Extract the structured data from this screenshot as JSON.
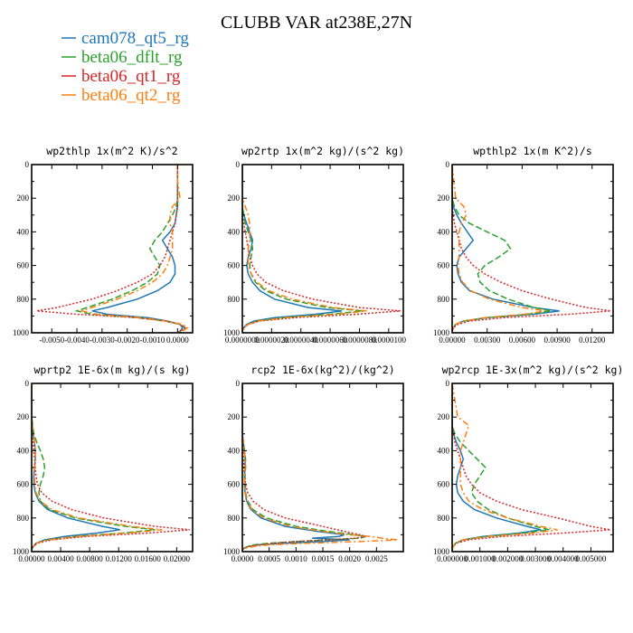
{
  "figure": {
    "title": "CLUBB VAR at238E,27N"
  },
  "legend": [
    {
      "label": "cam078_qt5_rg",
      "color": "#1f77b4",
      "dash": "solid"
    },
    {
      "label": "beta06_dflt_rg",
      "color": "#2ca02c",
      "dash": "dash"
    },
    {
      "label": "beta06_qt1_rg",
      "color": "#d62728",
      "dash": "dot"
    },
    {
      "label": "beta06_qt2_rg",
      "color": "#ff7f0e",
      "dash": "dashdot"
    }
  ],
  "chart_data": [
    {
      "type": "line",
      "title": "wp2thlp  1x(m^2 K)/s^2",
      "xlim": [
        -0.0058,
        0.0006
      ],
      "xticks": [
        -0.005,
        -0.004,
        -0.003,
        -0.002,
        -0.001,
        0.0
      ],
      "xtick_labels": [
        "-0.0050",
        "-0.0040",
        "-0.0030",
        "-0.0020",
        "-0.0010",
        "0.0000"
      ],
      "ylim": [
        1000,
        0
      ],
      "yticks": [
        0,
        200,
        400,
        600,
        800,
        1000
      ],
      "ytick_labels": [
        "0",
        "200",
        "400",
        "600",
        "800",
        "1000"
      ],
      "y": [
        0,
        100,
        200,
        250,
        300,
        350,
        400,
        450,
        500,
        550,
        600,
        650,
        700,
        750,
        800,
        850,
        870,
        890,
        910,
        930,
        950,
        970,
        990,
        1000
      ],
      "series": [
        {
          "x": [
            0,
            0,
            0,
            0,
            -5e-05,
            -0.0001,
            -0.0003,
            -0.0006,
            -0.0004,
            -0.0002,
            -0.0001,
            -0.0001,
            -0.0003,
            -0.0008,
            -0.0016,
            -0.0028,
            -0.0034,
            -0.0028,
            -0.0012,
            -0.0004,
            0.0001,
            0.0002,
            0.0001,
            0
          ]
        },
        {
          "x": [
            0,
            0,
            0,
            -5e-05,
            -0.0002,
            -0.0004,
            -0.0006,
            -0.0009,
            -0.0011,
            -0.0009,
            -0.0007,
            -0.0008,
            -0.0012,
            -0.0018,
            -0.0026,
            -0.0036,
            -0.004,
            -0.0034,
            -0.0016,
            -0.0005,
            0.0001,
            0.0003,
            0.0002,
            0
          ]
        },
        {
          "x": [
            0,
            0,
            0,
            0,
            -5e-05,
            -0.0001,
            -0.0002,
            -0.0003,
            -0.0004,
            -0.0005,
            -0.0007,
            -0.001,
            -0.0016,
            -0.0024,
            -0.0034,
            -0.0048,
            -0.0056,
            -0.004,
            -0.0016,
            -0.0005,
            0.0001,
            0.0003,
            0.0001,
            0
          ]
        },
        {
          "x": [
            0,
            0,
            0.0001,
            -0.0002,
            -0.0003,
            -0.0003,
            -0.0002,
            -0.0002,
            -0.0002,
            -0.0003,
            -0.0004,
            -0.0006,
            -0.001,
            -0.0016,
            -0.0024,
            -0.0034,
            -0.0038,
            -0.0032,
            -0.0015,
            -0.0005,
            0.0002,
            0.0004,
            0.0002,
            0
          ]
        }
      ]
    },
    {
      "type": "line",
      "title": "wp2rtp  1x(m^2 kg)/(s^2 kg)",
      "xlim": [
        0,
        1.1e-05
      ],
      "xticks": [
        0,
        2e-06,
        4e-06,
        6e-06,
        8e-06,
        1e-05
      ],
      "xtick_labels": [
        "0.0000000",
        "0.0000020",
        "0.0000040",
        "0.0000060",
        "0.0000080",
        "0.0000100"
      ],
      "ylim": [
        1000,
        0
      ],
      "yticks": [
        0,
        200,
        400,
        600,
        800,
        1000
      ],
      "ytick_labels": [
        "0",
        "200",
        "400",
        "600",
        "800",
        "1000"
      ],
      "y": [
        0,
        200,
        250,
        300,
        350,
        400,
        450,
        500,
        550,
        600,
        650,
        700,
        750,
        800,
        850,
        870,
        890,
        910,
        930,
        950,
        970,
        990,
        1000
      ],
      "series": [
        {
          "x": [
            0,
            0,
            0,
            1e-07,
            3e-07,
            5e-07,
            7e-07,
            6e-07,
            4e-07,
            3e-07,
            4e-07,
            7e-07,
            1.2e-06,
            2.2e-06,
            4.5e-06,
            6.8e-06,
            5e-06,
            2.2e-06,
            8e-07,
            3e-07,
            1e-07,
            0,
            0
          ]
        },
        {
          "x": [
            0,
            0,
            0,
            1e-07,
            2e-07,
            4e-07,
            6e-07,
            7e-07,
            6e-07,
            5e-07,
            6e-07,
            9e-07,
            1.6e-06,
            3e-06,
            5.8e-06,
            8.2e-06,
            6e-06,
            2.8e-06,
            1e-06,
            4e-07,
            1e-07,
            0,
            0
          ]
        },
        {
          "x": [
            0,
            0,
            0,
            0,
            1e-07,
            2e-07,
            3e-07,
            4e-07,
            5e-07,
            7e-07,
            1e-06,
            1.6e-06,
            2.8e-06,
            4.8e-06,
            8e-06,
            1.08e-05,
            7.8e-06,
            3.6e-06,
            1.2e-06,
            4e-07,
            1e-07,
            0,
            0
          ]
        },
        {
          "x": [
            0,
            0,
            2e-07,
            4e-07,
            5e-07,
            5e-07,
            5e-07,
            4e-07,
            4e-07,
            4e-07,
            6e-07,
            1e-06,
            1.8e-06,
            3.4e-06,
            6.2e-06,
            8.5e-06,
            6.5e-06,
            3e-06,
            1.1e-06,
            4e-07,
            1e-07,
            0,
            0
          ]
        }
      ]
    },
    {
      "type": "line",
      "title": "wpthlp2  1x(m K^2)/s",
      "xlim": [
        0,
        0.0138
      ],
      "xticks": [
        0,
        0.003,
        0.006,
        0.009,
        0.012
      ],
      "xtick_labels": [
        "0.00000",
        "0.00300",
        "0.00600",
        "0.00900",
        "0.01200"
      ],
      "ylim": [
        1000,
        0
      ],
      "yticks": [
        0,
        200,
        400,
        600,
        800,
        1000
      ],
      "ytick_labels": [
        "0",
        "200",
        "400",
        "600",
        "800",
        "1000"
      ],
      "y": [
        0,
        200,
        250,
        300,
        350,
        400,
        450,
        500,
        550,
        600,
        650,
        700,
        750,
        800,
        850,
        870,
        890,
        910,
        930,
        950,
        970,
        990,
        1000
      ],
      "series": [
        {
          "x": [
            0,
            0,
            0.0001,
            0.0004,
            0.0008,
            0.0013,
            0.0018,
            0.0012,
            0.0006,
            0.0004,
            0.0005,
            0.0008,
            0.0015,
            0.0035,
            0.007,
            0.0092,
            0.007,
            0.003,
            0.001,
            0.0003,
            0.0001,
            0,
            0
          ]
        },
        {
          "x": [
            0,
            0,
            0.0002,
            0.0006,
            0.0015,
            0.003,
            0.0045,
            0.005,
            0.004,
            0.0028,
            0.0022,
            0.0024,
            0.0032,
            0.0048,
            0.007,
            0.0085,
            0.0065,
            0.003,
            0.001,
            0.0003,
            0.0001,
            0,
            0
          ]
        },
        {
          "x": [
            0,
            0,
            0,
            0.0001,
            0.0002,
            0.0004,
            0.0006,
            0.0008,
            0.0012,
            0.0018,
            0.0028,
            0.0042,
            0.006,
            0.0085,
            0.0115,
            0.0136,
            0.01,
            0.0045,
            0.0015,
            0.0005,
            0.0001,
            0,
            0
          ]
        },
        {
          "x": [
            0,
            0.0003,
            0.001,
            0.0012,
            0.0008,
            0.0006,
            0.0006,
            0.0006,
            0.0006,
            0.0005,
            0.0006,
            0.0009,
            0.0016,
            0.0032,
            0.006,
            0.008,
            0.0062,
            0.0028,
            0.001,
            0.0003,
            0.0001,
            0,
            0
          ]
        }
      ]
    },
    {
      "type": "line",
      "title": "wprtp2  1E-6x(m kg)/(s kg)",
      "xlim": [
        0,
        0.0222
      ],
      "xticks": [
        0,
        0.004,
        0.008,
        0.012,
        0.016,
        0.02
      ],
      "xtick_labels": [
        "0.00000",
        "0.00400",
        "0.00800",
        "0.01200",
        "0.01600",
        "0.02000"
      ],
      "ylim": [
        1000,
        0
      ],
      "yticks": [
        0,
        200,
        400,
        600,
        800,
        1000
      ],
      "ytick_labels": [
        "0",
        "200",
        "400",
        "600",
        "800",
        "1000"
      ],
      "y": [
        0,
        200,
        300,
        350,
        400,
        450,
        500,
        550,
        600,
        650,
        700,
        750,
        800,
        850,
        870,
        890,
        910,
        930,
        950,
        970,
        990,
        1000
      ],
      "series": [
        {
          "x": [
            0,
            0,
            0.0002,
            0.0004,
            0.0005,
            0.0005,
            0.0004,
            0.0003,
            0.0003,
            0.0005,
            0.001,
            0.0022,
            0.005,
            0.0098,
            0.0122,
            0.009,
            0.0045,
            0.0018,
            0.0006,
            0.0002,
            0,
            0
          ]
        },
        {
          "x": [
            0,
            0,
            0.0003,
            0.0007,
            0.0012,
            0.0016,
            0.0018,
            0.0016,
            0.0012,
            0.001,
            0.0012,
            0.0025,
            0.006,
            0.013,
            0.017,
            0.0125,
            0.006,
            0.0022,
            0.0007,
            0.0002,
            0,
            0
          ]
        },
        {
          "x": [
            0,
            0,
            0.0001,
            0.0002,
            0.0003,
            0.0004,
            0.0005,
            0.0006,
            0.0008,
            0.0014,
            0.0028,
            0.0055,
            0.01,
            0.017,
            0.0218,
            0.016,
            0.0075,
            0.0028,
            0.0008,
            0.0002,
            0,
            0
          ]
        },
        {
          "x": [
            0,
            0,
            0.0002,
            0.0004,
            0.0005,
            0.0005,
            0.0004,
            0.0004,
            0.0004,
            0.0006,
            0.0012,
            0.0028,
            0.0065,
            0.0138,
            0.018,
            0.0132,
            0.0062,
            0.0023,
            0.0007,
            0.0002,
            0,
            0
          ]
        }
      ]
    },
    {
      "type": "line",
      "title": "rcp2  1E-6x(kg^2)/(kg^2)",
      "xlim": [
        0,
        0.003
      ],
      "xticks": [
        0,
        0.0005,
        0.001,
        0.0015,
        0.002,
        0.0025
      ],
      "xtick_labels": [
        "0.0000",
        "0.0005",
        "0.0010",
        "0.0015",
        "0.0020",
        "0.0025"
      ],
      "ylim": [
        1000,
        0
      ],
      "yticks": [
        0,
        200,
        400,
        600,
        800,
        1000
      ],
      "ytick_labels": [
        "0",
        "200",
        "400",
        "600",
        "800",
        "1000"
      ],
      "y": [
        0,
        300,
        350,
        400,
        450,
        500,
        550,
        600,
        650,
        700,
        750,
        800,
        850,
        880,
        900,
        910,
        920,
        930,
        940,
        950,
        960,
        970,
        980,
        990,
        1000
      ],
      "series": [
        {
          "x": [
            0,
            0,
            2e-05,
            4e-05,
            5e-05,
            5e-05,
            4e-05,
            4e-05,
            5e-05,
            8e-05,
            0.00016,
            0.00035,
            0.0008,
            0.0014,
            0.0019,
            0.0018,
            0.0013,
            0.002,
            0.0015,
            0.0008,
            0.0003,
            0.0001,
            3e-05,
            0,
            0
          ]
        },
        {
          "x": [
            0,
            0,
            2e-05,
            4e-05,
            6e-05,
            6e-05,
            5e-05,
            5e-05,
            6e-05,
            0.0001,
            0.0002,
            0.00045,
            0.001,
            0.0016,
            0.0021,
            0.0023,
            0.0022,
            0.0016,
            0.001,
            0.0005,
            0.0002,
            0.0001,
            3e-05,
            0,
            0
          ]
        },
        {
          "x": [
            0,
            0,
            0,
            1e-05,
            2e-05,
            3e-05,
            4e-05,
            6e-05,
            0.0001,
            0.0002,
            0.0004,
            0.0008,
            0.0015,
            0.0019,
            0.0022,
            0.0023,
            0.0021,
            0.0016,
            0.001,
            0.0006,
            0.0003,
            0.0001,
            3e-05,
            0,
            0
          ]
        },
        {
          "x": [
            0,
            0,
            2e-05,
            4e-05,
            5e-05,
            5e-05,
            4e-05,
            4e-05,
            5e-05,
            9e-05,
            0.00018,
            0.0004,
            0.0009,
            0.0015,
            0.002,
            0.0024,
            0.0026,
            0.0029,
            0.0022,
            0.0012,
            0.0005,
            0.0002,
            5e-05,
            0,
            0
          ]
        }
      ]
    },
    {
      "type": "line",
      "title": "wp2rcp  1E-3x(m^2 kg)/(s^2 kg)",
      "xlim": [
        0,
        0.0058
      ],
      "xticks": [
        0,
        0.001,
        0.002,
        0.003,
        0.004,
        0.005
      ],
      "xtick_labels": [
        "0.000000",
        "0.001000",
        "0.002000",
        "0.003000",
        "0.004000",
        "0.005000"
      ],
      "ylim": [
        1000,
        0
      ],
      "yticks": [
        0,
        200,
        400,
        600,
        800,
        1000
      ],
      "ytick_labels": [
        "0",
        "200",
        "400",
        "600",
        "800",
        "1000"
      ],
      "y": [
        0,
        200,
        250,
        300,
        350,
        400,
        450,
        500,
        550,
        600,
        650,
        700,
        750,
        800,
        850,
        870,
        890,
        910,
        930,
        950,
        970,
        990,
        1000
      ],
      "series": [
        {
          "x": [
            0,
            0,
            0,
            5e-05,
            0.00015,
            0.0003,
            0.0004,
            0.0003,
            0.0002,
            0.00015,
            0.0002,
            0.0004,
            0.0008,
            0.0016,
            0.0027,
            0.0032,
            0.0024,
            0.0011,
            0.0004,
            0.00012,
            3e-05,
            0,
            0
          ]
        },
        {
          "x": [
            0,
            0,
            0,
            0.0001,
            0.0003,
            0.0006,
            0.0009,
            0.0012,
            0.001,
            0.0008,
            0.0007,
            0.0009,
            0.0013,
            0.002,
            0.003,
            0.0035,
            0.0026,
            0.0012,
            0.0004,
            0.00012,
            3e-05,
            0,
            0
          ]
        },
        {
          "x": [
            0,
            0,
            0,
            5e-05,
            0.0001,
            0.0002,
            0.0003,
            0.0004,
            0.0005,
            0.0007,
            0.001,
            0.0016,
            0.0025,
            0.0038,
            0.005,
            0.0057,
            0.004,
            0.0018,
            0.0006,
            0.00015,
            3e-05,
            0,
            0
          ]
        },
        {
          "x": [
            0,
            0.0002,
            0.0006,
            0.0005,
            0.0004,
            0.0003,
            0.0003,
            0.0003,
            0.0003,
            0.0003,
            0.0004,
            0.0006,
            0.0011,
            0.002,
            0.0032,
            0.0038,
            0.0029,
            0.0013,
            0.0004,
            0.00012,
            3e-05,
            0,
            0
          ]
        }
      ]
    }
  ]
}
